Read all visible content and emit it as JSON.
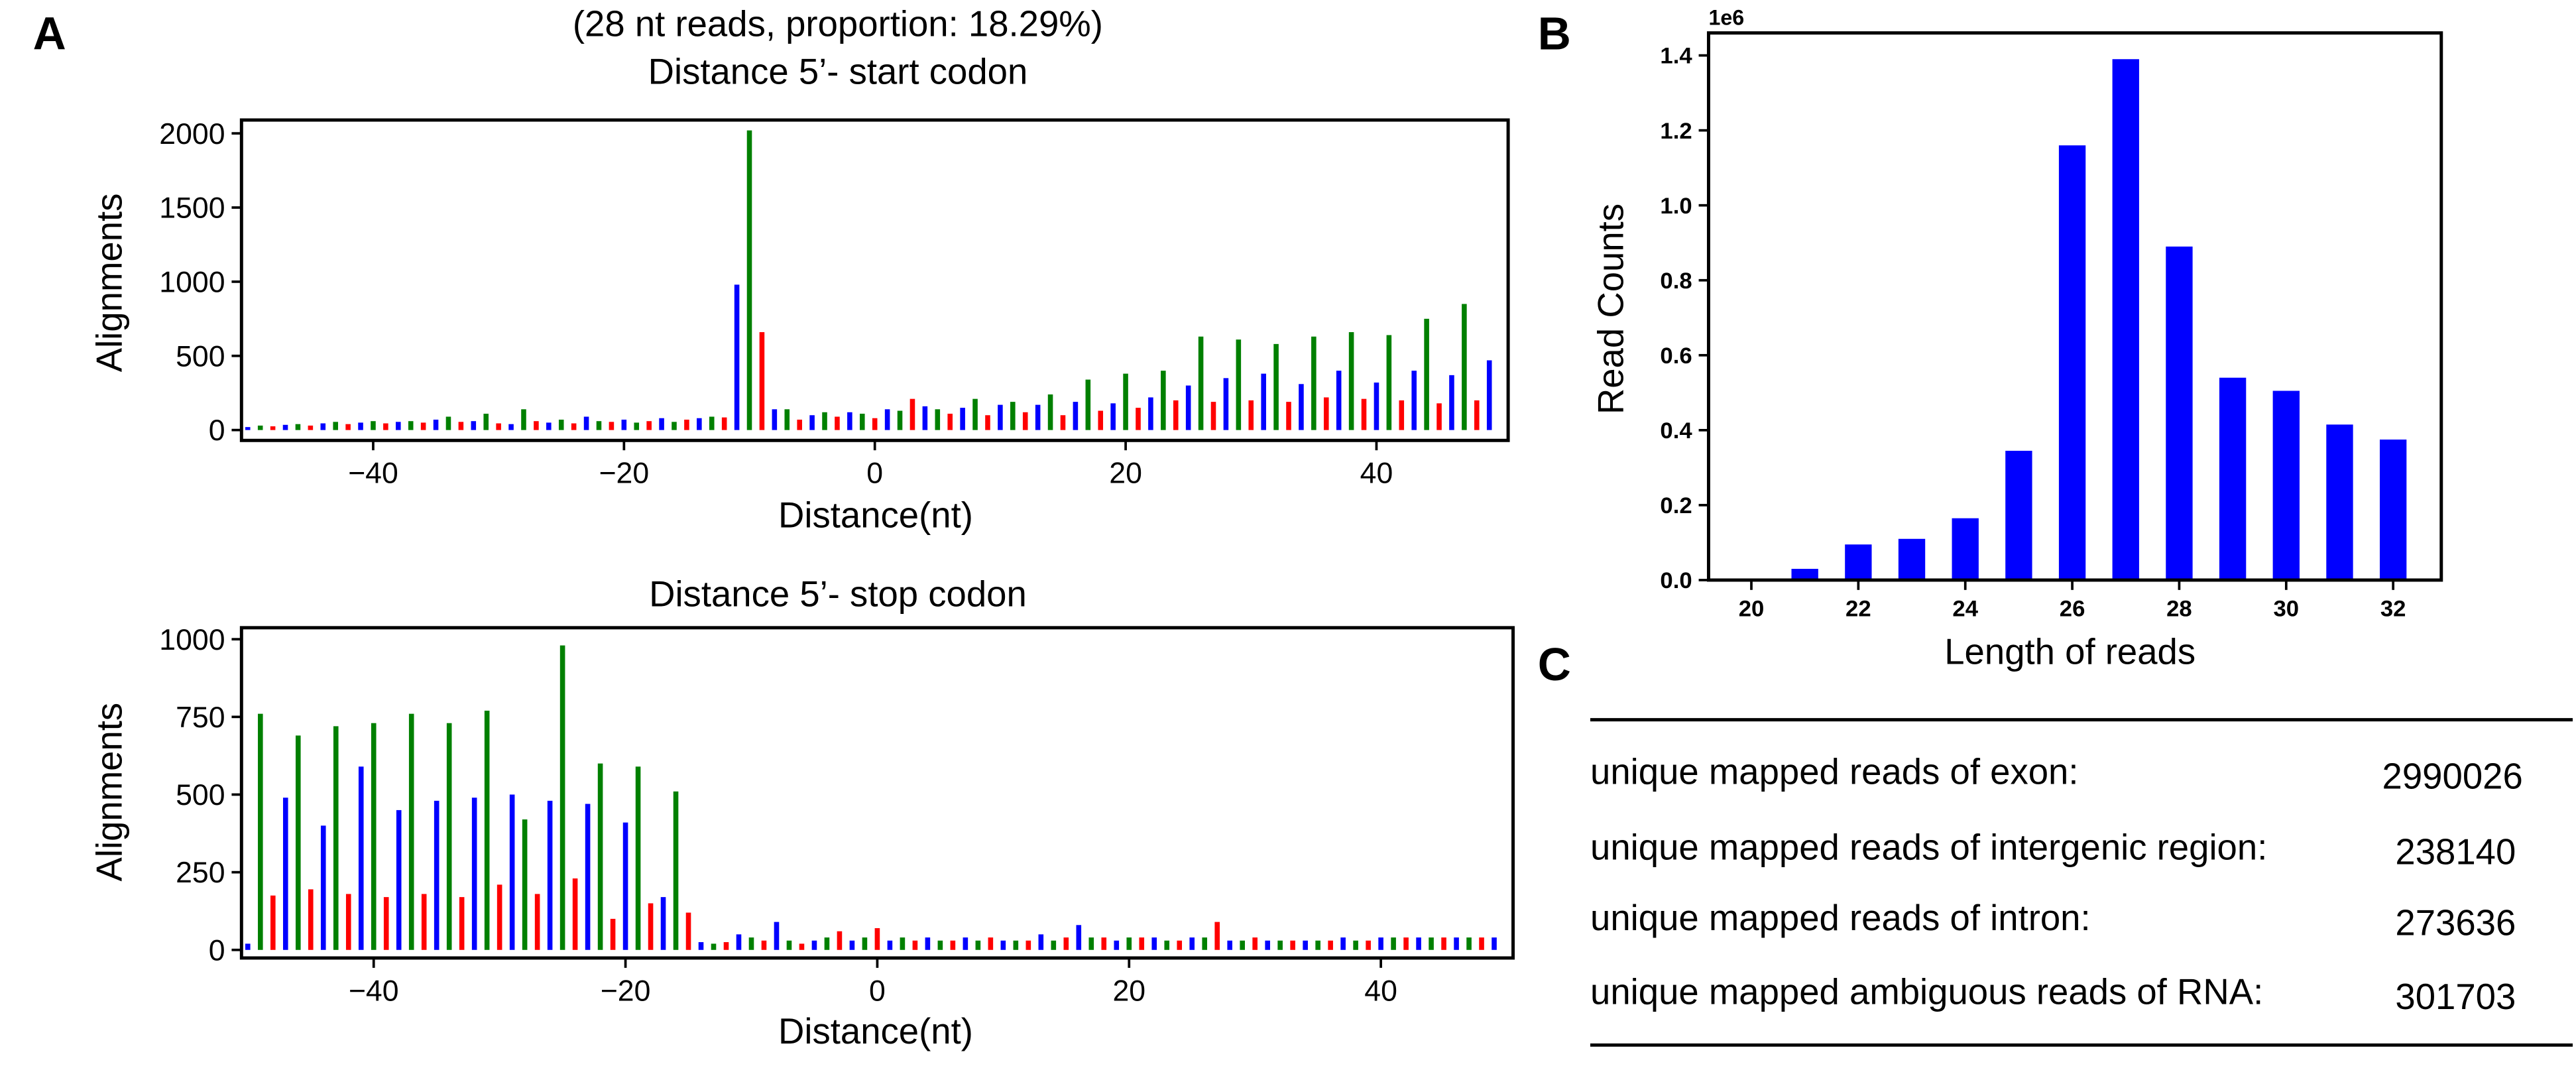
{
  "chart_data": [
    {
      "type": "bar",
      "panel": "A",
      "subtitle": "(28 nt reads, proportion: 18.29%)",
      "title": "Distance 5’- start codon",
      "xlabel": "Distance(nt)",
      "ylabel": "Alignments",
      "colors": [
        "#0000ff",
        "#008000",
        "#ff0000"
      ],
      "x": [
        -50,
        -49,
        -48,
        -47,
        -46,
        -45,
        -44,
        -43,
        -42,
        -41,
        -40,
        -39,
        -38,
        -37,
        -36,
        -35,
        -34,
        -33,
        -32,
        -31,
        -30,
        -29,
        -28,
        -27,
        -26,
        -25,
        -24,
        -23,
        -22,
        -21,
        -20,
        -19,
        -18,
        -17,
        -16,
        -15,
        -14,
        -13,
        -12,
        -11,
        -10,
        -9,
        -8,
        -7,
        -6,
        -5,
        -4,
        -3,
        -2,
        -1,
        0,
        1,
        2,
        3,
        4,
        5,
        6,
        7,
        8,
        9,
        10,
        11,
        12,
        13,
        14,
        15,
        16,
        17,
        18,
        19,
        20,
        21,
        22,
        23,
        24,
        25,
        26,
        27,
        28,
        29,
        30,
        31,
        32,
        33,
        34,
        35,
        36,
        37,
        38,
        39,
        40,
        41,
        42,
        43,
        44,
        45,
        46,
        47,
        48,
        49
      ],
      "values": [
        20,
        30,
        25,
        35,
        40,
        30,
        45,
        55,
        40,
        50,
        60,
        45,
        55,
        60,
        50,
        70,
        90,
        55,
        60,
        110,
        45,
        40,
        140,
        60,
        50,
        70,
        45,
        90,
        60,
        55,
        70,
        50,
        60,
        80,
        55,
        70,
        80,
        90,
        85,
        980,
        2020,
        660,
        140,
        140,
        70,
        100,
        120,
        90,
        120,
        110,
        80,
        140,
        130,
        210,
        160,
        140,
        110,
        150,
        210,
        100,
        170,
        190,
        120,
        170,
        240,
        100,
        190,
        340,
        130,
        180,
        380,
        150,
        220,
        400,
        200,
        300,
        630,
        190,
        350,
        610,
        200,
        380,
        580,
        190,
        310,
        630,
        220,
        400,
        660,
        210,
        320,
        640,
        200,
        400,
        750,
        180,
        370,
        850,
        200,
        470
      ],
      "xlim": [
        -50.5,
        50.5
      ],
      "ylim": [
        -70,
        2090
      ],
      "xticks": [
        {
          "value": -40,
          "label": "−40"
        },
        {
          "value": -20,
          "label": "−20"
        },
        0,
        20,
        40
      ],
      "yticks": [
        0,
        500,
        1000,
        1500,
        2000
      ]
    },
    {
      "type": "bar",
      "title": "Distance 5’- stop codon",
      "xlabel": "Distance(nt)",
      "ylabel": "Alignments",
      "colors": [
        "#0000ff",
        "#008000",
        "#ff0000"
      ],
      "x": [
        -50,
        -49,
        -48,
        -47,
        -46,
        -45,
        -44,
        -43,
        -42,
        -41,
        -40,
        -39,
        -38,
        -37,
        -36,
        -35,
        -34,
        -33,
        -32,
        -31,
        -30,
        -29,
        -28,
        -27,
        -26,
        -25,
        -24,
        -23,
        -22,
        -21,
        -20,
        -19,
        -18,
        -17,
        -16,
        -15,
        -14,
        -13,
        -12,
        -11,
        -10,
        -9,
        -8,
        -7,
        -6,
        -5,
        -4,
        -3,
        -2,
        -1,
        0,
        1,
        2,
        3,
        4,
        5,
        6,
        7,
        8,
        9,
        10,
        11,
        12,
        13,
        14,
        15,
        16,
        17,
        18,
        19,
        20,
        21,
        22,
        23,
        24,
        25,
        26,
        27,
        28,
        29,
        30,
        31,
        32,
        33,
        34,
        35,
        36,
        37,
        38,
        39,
        40,
        41,
        42,
        43,
        44,
        45,
        46,
        47,
        48,
        49
      ],
      "values": [
        20,
        760,
        175,
        490,
        690,
        195,
        400,
        720,
        180,
        590,
        730,
        170,
        450,
        760,
        180,
        480,
        730,
        170,
        490,
        770,
        210,
        500,
        420,
        180,
        480,
        980,
        230,
        470,
        600,
        100,
        410,
        590,
        150,
        170,
        510,
        120,
        25,
        20,
        25,
        50,
        40,
        30,
        90,
        30,
        20,
        30,
        40,
        60,
        30,
        40,
        70,
        30,
        40,
        30,
        40,
        30,
        30,
        40,
        30,
        40,
        30,
        30,
        30,
        50,
        30,
        40,
        80,
        40,
        40,
        30,
        40,
        40,
        40,
        30,
        30,
        40,
        40,
        90,
        30,
        30,
        40,
        30,
        30,
        30,
        30,
        30,
        30,
        40,
        30,
        30,
        40,
        40,
        40,
        40,
        40,
        40,
        40,
        40,
        40,
        40
      ],
      "xlim": [
        -50.5,
        50.5
      ],
      "ylim": [
        -26,
        1037
      ],
      "xticks": [
        {
          "value": -40,
          "label": "−40"
        },
        {
          "value": -20,
          "label": "−20"
        },
        0,
        20,
        40
      ],
      "yticks": [
        0,
        250,
        500,
        750,
        1000
      ]
    },
    {
      "type": "bar",
      "panel": "B",
      "xlabel": "Length of reads",
      "ylabel": "Read Counts",
      "y_offset_text": "1e6",
      "color": "#0000ff",
      "x": [
        20,
        21,
        22,
        23,
        24,
        25,
        26,
        27,
        28,
        29,
        30,
        31,
        32
      ],
      "values": [
        0.002,
        0.03,
        0.095,
        0.11,
        0.165,
        0.345,
        1.16,
        1.39,
        0.89,
        0.54,
        0.505,
        0.415,
        0.375
      ],
      "xlim": [
        19.2,
        32.9
      ],
      "ylim": [
        0,
        1.46
      ],
      "xticks": [
        20,
        22,
        24,
        26,
        28,
        30,
        32
      ],
      "yticks": [
        {
          "value": 0,
          "label": "0.0"
        },
        0.2,
        0.4,
        0.6,
        0.8,
        {
          "value": 1,
          "label": "1.0"
        },
        1.2,
        1.4
      ]
    }
  ],
  "table": {
    "panel": "C",
    "rows": [
      [
        "unique mapped reads of exon:",
        "2990026"
      ],
      [
        "unique mapped reads of intergenic region:",
        "238140"
      ],
      [
        "unique mapped reads of intron:",
        "273636"
      ],
      [
        "unique mapped ambiguous reads of RNA:",
        "301703"
      ]
    ]
  }
}
